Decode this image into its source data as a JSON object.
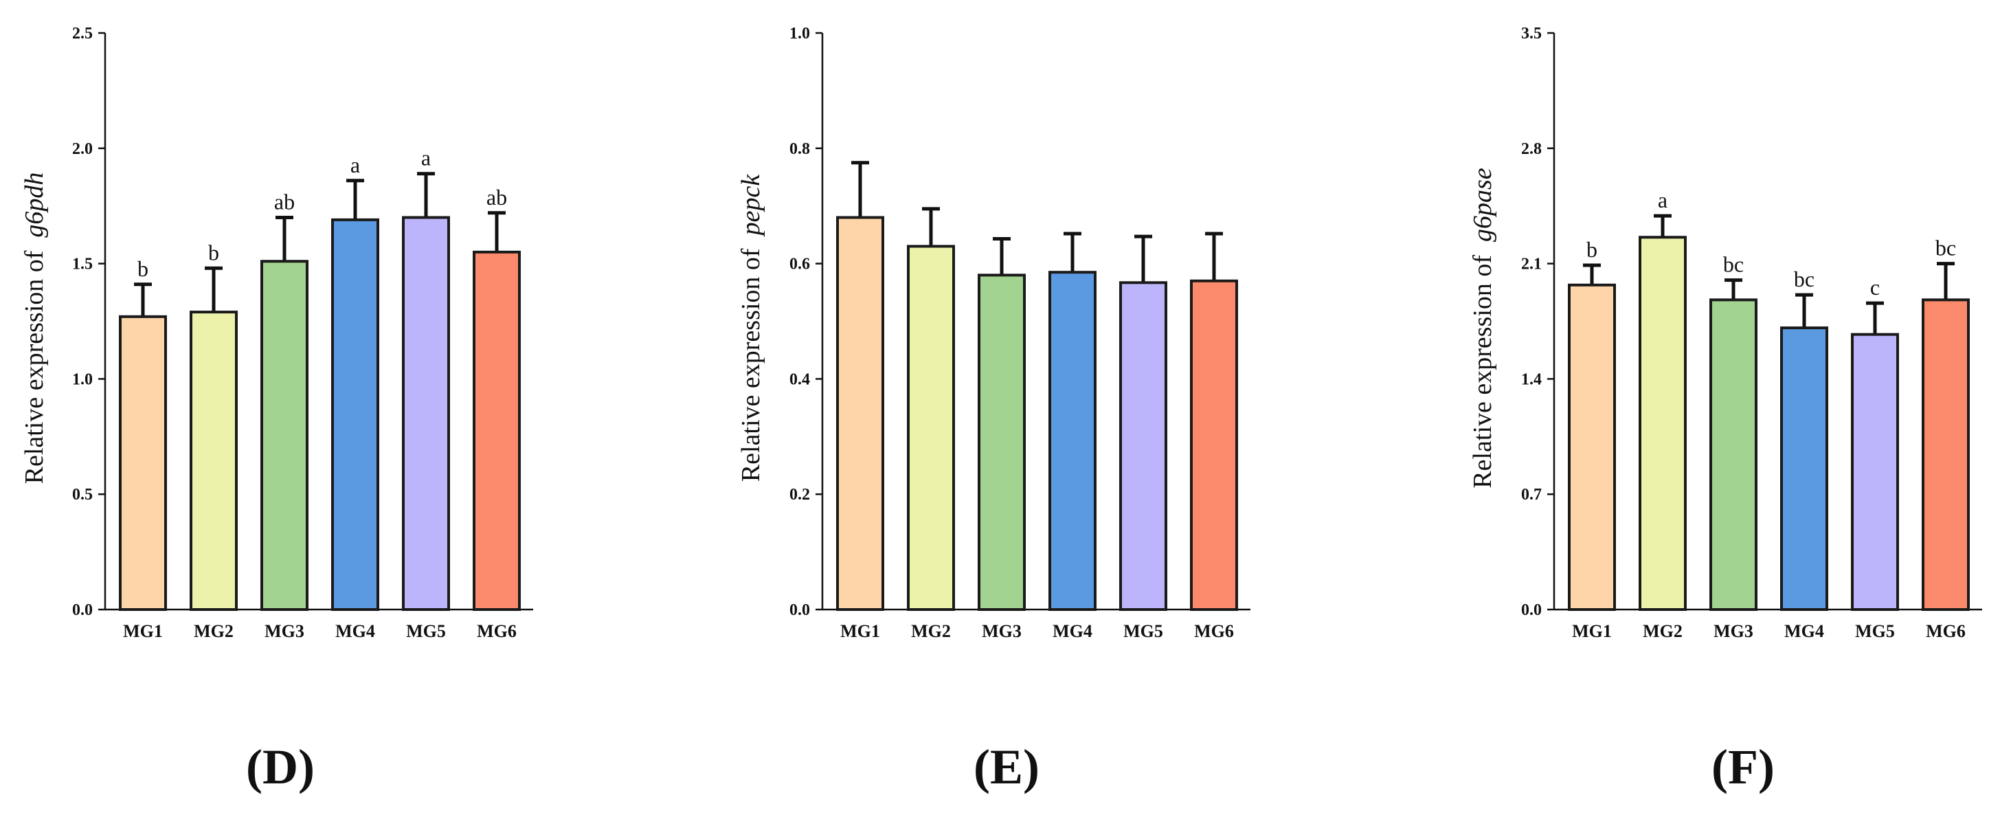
{
  "chart_data": [
    {
      "type": "bar",
      "panel": "(D)",
      "ylabel_prefix": "Relative expression of",
      "ylabel_gene": "g6pdh",
      "categories": [
        "MG1",
        "MG2",
        "MG3",
        "MG4",
        "MG5",
        "MG6"
      ],
      "values": [
        1.27,
        1.29,
        1.51,
        1.69,
        1.7,
        1.55
      ],
      "errors": [
        0.14,
        0.19,
        0.19,
        0.17,
        0.19,
        0.17
      ],
      "significance": [
        "b",
        "b",
        "ab",
        "a",
        "a",
        "ab"
      ],
      "ylim": [
        0,
        2.5
      ],
      "yticks": [
        "0.0",
        "0.5",
        "1.0",
        "1.5",
        "2.0",
        "2.5"
      ],
      "colors": [
        "#FDD5A8",
        "#ECF2AA",
        "#A2D390",
        "#5B9AE0",
        "#BDB5FB",
        "#FB8A6C"
      ]
    },
    {
      "type": "bar",
      "panel": "(E)",
      "ylabel_prefix": "Relative expression of",
      "ylabel_gene": "pepck",
      "categories": [
        "MG1",
        "MG2",
        "MG3",
        "MG4",
        "MG5",
        "MG6"
      ],
      "values": [
        0.68,
        0.63,
        0.58,
        0.585,
        0.567,
        0.57
      ],
      "errors": [
        0.095,
        0.065,
        0.063,
        0.067,
        0.08,
        0.082
      ],
      "significance": [
        "",
        "",
        "",
        "",
        "",
        ""
      ],
      "ylim": [
        0,
        1.0
      ],
      "yticks": [
        "0.0",
        "0.2",
        "0.4",
        "0.6",
        "0.8",
        "1.0"
      ],
      "colors": [
        "#FDD5A8",
        "#ECF2AA",
        "#A2D390",
        "#5B9AE0",
        "#BDB5FB",
        "#FB8A6C"
      ]
    },
    {
      "type": "bar",
      "panel": "(F)",
      "ylabel_prefix": "Relative expression of",
      "ylabel_gene": "g6pase",
      "categories": [
        "MG1",
        "MG2",
        "MG3",
        "MG4",
        "MG5",
        "MG6"
      ],
      "values": [
        1.97,
        2.26,
        1.88,
        1.71,
        1.67,
        1.88
      ],
      "errors": [
        0.12,
        0.13,
        0.12,
        0.2,
        0.19,
        0.22
      ],
      "significance": [
        "b",
        "a",
        "bc",
        "bc",
        "c",
        "bc"
      ],
      "ylim": [
        0,
        3.5
      ],
      "yticks": [
        "0.0",
        "0.7",
        "1.4",
        "2.1",
        "2.8",
        "3.5"
      ],
      "colors": [
        "#FDD5A8",
        "#ECF2AA",
        "#A2D390",
        "#5B9AE0",
        "#BDB5FB",
        "#FB8A6C"
      ]
    }
  ]
}
